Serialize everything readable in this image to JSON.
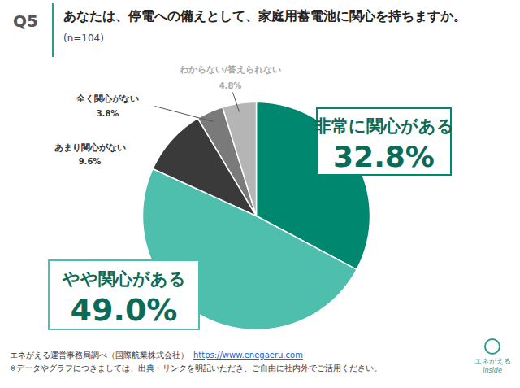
{
  "chart_data": {
    "type": "pie",
    "question_label": "Q5",
    "title": "あなたは、停電への備えとして、家庭用蓄電池に関心を持ちますか。",
    "subtitle": "(n=104)",
    "categories": [
      "非常に関心がある",
      "やや関心がある",
      "あまり関心がない",
      "全く関心がない",
      "わからない/答えられない"
    ],
    "values": [
      32.8,
      49.0,
      9.6,
      3.8,
      4.8
    ],
    "value_labels": [
      "32.8%",
      "49.0%",
      "9.6%",
      "3.8%",
      "4.8%"
    ],
    "colors": [
      "#00876f",
      "#4fbfad",
      "#3a3a3a",
      "#7a7a7a",
      "#b5b5b5"
    ],
    "data_labels": true,
    "source": "エネがえる運営事務局調べ（国際航業株式会社）",
    "source_url": "https://www.enegaeru.com",
    "note": "※データやグラフにつきましては、出典・リンクを明記いただき、ご自由に社内外でご活用ください。",
    "logo_text": [
      "エネがえる",
      "inside"
    ]
  }
}
